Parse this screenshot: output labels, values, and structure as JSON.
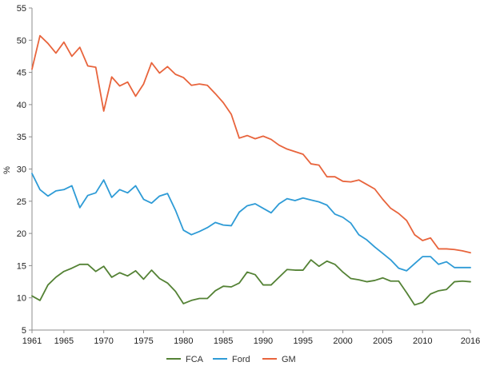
{
  "chart_data": {
    "type": "line",
    "title": "",
    "xlabel": "",
    "ylabel": "%",
    "xlim": [
      1961,
      2016
    ],
    "ylim": [
      5,
      55
    ],
    "x_ticks": [
      "1961",
      "1965",
      "1970",
      "1975",
      "1980",
      "1985",
      "1990",
      "1995",
      "2000",
      "2005",
      "2010",
      "2016"
    ],
    "y_ticks": [
      "5",
      "10",
      "15",
      "20",
      "25",
      "30",
      "35",
      "40",
      "45",
      "50",
      "55"
    ],
    "grid": false,
    "legend_position": "bottom",
    "x": [
      1961,
      1962,
      1963,
      1964,
      1965,
      1966,
      1967,
      1968,
      1969,
      1970,
      1971,
      1972,
      1973,
      1974,
      1975,
      1976,
      1977,
      1978,
      1979,
      1980,
      1981,
      1982,
      1983,
      1984,
      1985,
      1986,
      1987,
      1988,
      1989,
      1990,
      1991,
      1992,
      1993,
      1994,
      1995,
      1996,
      1997,
      1998,
      1999,
      2000,
      2001,
      2002,
      2003,
      2004,
      2005,
      2006,
      2007,
      2008,
      2009,
      2010,
      2011,
      2012,
      2013,
      2014,
      2015,
      2016
    ],
    "series": [
      {
        "name": "FCA",
        "color": "#548235",
        "values": [
          10.3,
          9.6,
          12.0,
          13.2,
          14.1,
          14.6,
          15.2,
          15.2,
          14.1,
          14.9,
          13.2,
          13.9,
          13.4,
          14.2,
          12.9,
          14.3,
          13.0,
          12.3,
          11.0,
          9.1,
          9.6,
          9.9,
          9.9,
          11.1,
          11.8,
          11.7,
          12.3,
          14.0,
          13.6,
          12.0,
          12.0,
          13.2,
          14.4,
          14.3,
          14.3,
          15.9,
          14.9,
          15.7,
          15.2,
          14.0,
          13.0,
          12.8,
          12.5,
          12.7,
          13.1,
          12.6,
          12.6,
          10.8,
          8.9,
          9.3,
          10.6,
          11.1,
          11.3,
          12.5,
          12.6,
          12.5
        ]
      },
      {
        "name": "Ford",
        "color": "#2e9bd6",
        "values": [
          29.3,
          26.8,
          25.8,
          26.6,
          26.8,
          27.4,
          24.0,
          25.9,
          26.3,
          28.3,
          25.6,
          26.8,
          26.3,
          27.4,
          25.3,
          24.7,
          25.8,
          26.2,
          23.6,
          20.5,
          19.8,
          20.3,
          20.9,
          21.7,
          21.3,
          21.2,
          23.3,
          24.3,
          24.6,
          23.9,
          23.2,
          24.6,
          25.4,
          25.1,
          25.5,
          25.2,
          24.9,
          24.4,
          23.0,
          22.5,
          21.6,
          19.8,
          19.0,
          17.9,
          16.9,
          15.9,
          14.6,
          14.2,
          15.3,
          16.4,
          16.4,
          15.2,
          15.6,
          14.7,
          14.7,
          14.7
        ]
      },
      {
        "name": "GM",
        "color": "#e8643c",
        "values": [
          45.5,
          50.7,
          49.5,
          48.0,
          49.7,
          47.5,
          48.9,
          46.0,
          45.8,
          39.0,
          44.3,
          42.9,
          43.5,
          41.3,
          43.2,
          46.5,
          44.9,
          45.9,
          44.7,
          44.2,
          43.0,
          43.2,
          43.0,
          41.7,
          40.3,
          38.5,
          34.8,
          35.2,
          34.7,
          35.1,
          34.6,
          33.7,
          33.1,
          32.7,
          32.3,
          30.8,
          30.6,
          28.8,
          28.8,
          28.1,
          28.0,
          28.3,
          27.6,
          26.9,
          25.3,
          23.9,
          23.1,
          22.0,
          19.8,
          18.9,
          19.3,
          17.6,
          17.6,
          17.5,
          17.3,
          17.0
        ]
      }
    ]
  }
}
